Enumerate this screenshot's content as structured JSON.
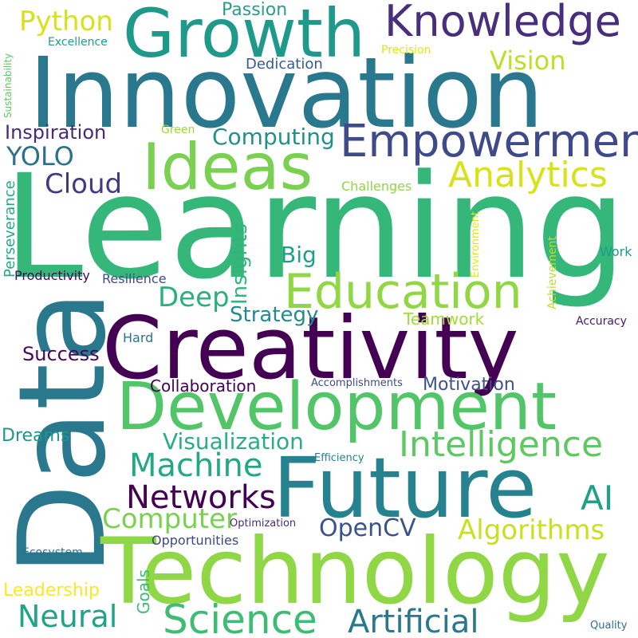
{
  "words": [
    {
      "text": "Learning",
      "color": "#35b779"
    },
    {
      "text": "Innovation",
      "color": "#2a788e"
    },
    {
      "text": "Creativity",
      "color": "#440154"
    },
    {
      "text": "Data",
      "color": "#2a788e"
    },
    {
      "text": "Technology",
      "color": "#8fd744"
    },
    {
      "text": "Development",
      "color": "#52c569"
    },
    {
      "text": "Future",
      "color": "#26828e"
    },
    {
      "text": "Growth",
      "color": "#1f9a8a"
    },
    {
      "text": "Knowledge",
      "color": "#472f7d"
    },
    {
      "text": "Ideas",
      "color": "#7ad151"
    },
    {
      "text": "Empowerment",
      "color": "#3e4a89"
    },
    {
      "text": "Education",
      "color": "#90d743"
    },
    {
      "text": "Intelligence",
      "color": "#5ec962"
    },
    {
      "text": "Science",
      "color": "#3ebc74"
    },
    {
      "text": "Artificial",
      "color": "#2a788e"
    },
    {
      "text": "Analytics",
      "color": "#d8e219"
    },
    {
      "text": "Algorithms",
      "color": "#c8e020"
    },
    {
      "text": "Machine",
      "color": "#22a884"
    },
    {
      "text": "Networks",
      "color": "#440154"
    },
    {
      "text": "Computer",
      "color": "#7ad151"
    },
    {
      "text": "OpenCV",
      "color": "#3b528b"
    },
    {
      "text": "Visualization",
      "color": "#29af7f"
    },
    {
      "text": "Neural",
      "color": "#20a386"
    },
    {
      "text": "Python",
      "color": "#d8e219"
    },
    {
      "text": "Vision",
      "color": "#bddf26"
    },
    {
      "text": "Computing",
      "color": "#21908d"
    },
    {
      "text": "Cloud",
      "color": "#443a83"
    },
    {
      "text": "Deep",
      "color": "#2ab07f"
    },
    {
      "text": "Big",
      "color": "#1f9e89"
    },
    {
      "text": "Insights",
      "color": "#31b57b"
    },
    {
      "text": "Strategy",
      "color": "#238a8d"
    },
    {
      "text": "Inspiration",
      "color": "#472a7a"
    },
    {
      "text": "YOLO",
      "color": "#2d708e"
    },
    {
      "text": "AI",
      "color": "#1fa187"
    },
    {
      "text": "Success",
      "color": "#46085c"
    },
    {
      "text": "Collaboration",
      "color": "#440154"
    },
    {
      "text": "Motivation",
      "color": "#3b528b"
    },
    {
      "text": "Teamwork",
      "color": "#a2da37"
    },
    {
      "text": "Dreams",
      "color": "#1f968b"
    },
    {
      "text": "Leadership",
      "color": "#fde725"
    },
    {
      "text": "Goals",
      "color": "#3dbc74"
    },
    {
      "text": "Passion",
      "color": "#2a9d8a"
    },
    {
      "text": "Dedication",
      "color": "#375b8d"
    },
    {
      "text": "Excellence",
      "color": "#1f9e89"
    },
    {
      "text": "Precision",
      "color": "#e2e418"
    },
    {
      "text": "Green",
      "color": "#98d83e"
    },
    {
      "text": "Challenges",
      "color": "#8fd744"
    },
    {
      "text": "Perseverance",
      "color": "#22a884"
    },
    {
      "text": "Sustainability",
      "color": "#5ec962"
    },
    {
      "text": "Productivity",
      "color": "#46075a"
    },
    {
      "text": "Resilience",
      "color": "#3e4989"
    },
    {
      "text": "Hard",
      "color": "#2c728e"
    },
    {
      "text": "Work",
      "color": "#1e9b8a"
    },
    {
      "text": "Environment",
      "color": "#e5e419"
    },
    {
      "text": "Achievement",
      "color": "#bade28"
    },
    {
      "text": "Accuracy",
      "color": "#48186a"
    },
    {
      "text": "Accomplishments",
      "color": "#3f4889"
    },
    {
      "text": "Efficiency",
      "color": "#26828e"
    },
    {
      "text": "Optimization",
      "color": "#472d7b"
    },
    {
      "text": "Opportunities",
      "color": "#404688"
    },
    {
      "text": "Ecosystem",
      "color": "#2c718e"
    },
    {
      "text": "Quality",
      "color": "#2c728e"
    }
  ]
}
